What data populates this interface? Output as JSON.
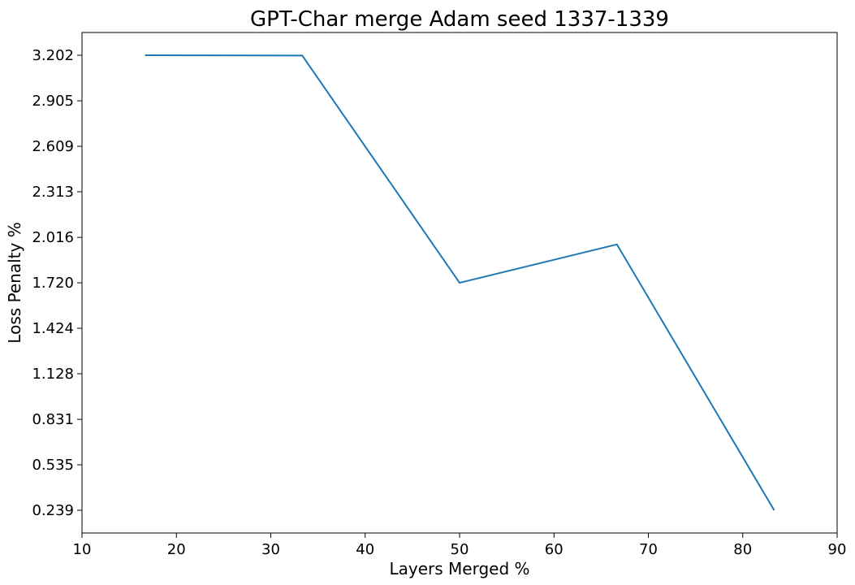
{
  "chart_data": {
    "type": "line",
    "title": "GPT-Char merge Adam seed 1337-1339",
    "xlabel": "Layers Merged %",
    "ylabel": "Loss Penalty %",
    "xlim": [
      10,
      90
    ],
    "ylim": [
      0.091,
      3.35
    ],
    "xticks": [
      10,
      20,
      30,
      40,
      50,
      60,
      70,
      80,
      90
    ],
    "xtick_labels": [
      "10",
      "20",
      "30",
      "40",
      "50",
      "60",
      "70",
      "80",
      "90"
    ],
    "yticks": [
      0.239,
      0.535,
      0.831,
      1.128,
      1.424,
      1.72,
      2.016,
      2.313,
      2.609,
      2.905,
      3.202
    ],
    "ytick_labels": [
      "0.239",
      "0.535",
      "0.831",
      "1.128",
      "1.424",
      "1.720",
      "2.016",
      "2.313",
      "2.609",
      "2.905",
      "3.202"
    ],
    "grid": false,
    "series": [
      {
        "color": "#1f77b4",
        "x": [
          16.67,
          33.33,
          50.0,
          66.67,
          83.33
        ],
        "y": [
          3.202,
          3.2,
          1.72,
          1.97,
          0.239
        ]
      }
    ]
  }
}
